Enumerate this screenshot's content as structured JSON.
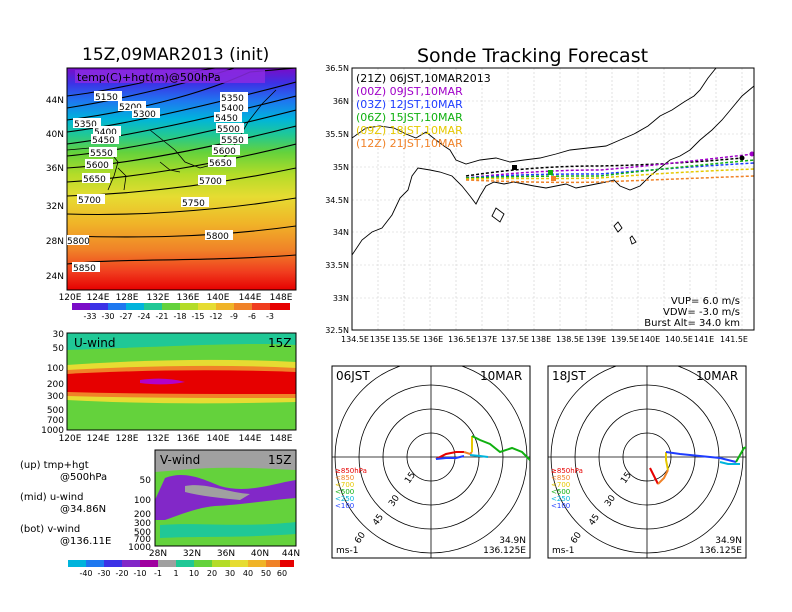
{
  "titles": {
    "left": "15Z,09MAR2013 (init)",
    "right": "Sonde Tracking Forecast"
  },
  "map500": {
    "label": "temp(C)+hgt(m)@500hPa",
    "lat_labels": [
      "44N",
      "40N",
      "36N",
      "32N",
      "28N",
      "24N"
    ],
    "lon_labels": [
      "120E",
      "124E",
      "128E",
      "132E",
      "136E",
      "140E",
      "144E",
      "148E"
    ],
    "contour_labels": [
      "5150",
      "5200",
      "5300",
      "5350",
      "5400",
      "5450",
      "5500",
      "5550",
      "5600",
      "5650",
      "5700",
      "5750",
      "5800",
      "5850"
    ],
    "colorbar_labels": [
      "-33",
      "-30",
      "-27",
      "-24",
      "-21",
      "-18",
      "-15",
      "-12",
      "-9",
      "-6",
      "-3"
    ]
  },
  "uwind": {
    "label": "U-wind",
    "time": "15Z",
    "y_labels": [
      "30",
      "50",
      "100",
      "200",
      "300",
      "500",
      "700",
      "1000"
    ],
    "x_labels": [
      "120E",
      "124E",
      "128E",
      "132E",
      "136E",
      "140E",
      "144E",
      "148E"
    ]
  },
  "vwind": {
    "label": "V-wind",
    "time": "15Z",
    "y_labels": [
      "50",
      "100",
      "200",
      "300",
      "500",
      "700",
      "1000"
    ],
    "x_labels": [
      "28N",
      "32N",
      "36N",
      "40N",
      "44N"
    ],
    "colorbar_labels": [
      "-40",
      "-30",
      "-20",
      "-10",
      "-1",
      "1",
      "10",
      "20",
      "30",
      "40",
      "50",
      "60"
    ]
  },
  "notes": {
    "up_a": "(up) tmp+hgt",
    "up_b": "@500hPa",
    "mid_a": "(mid) u-wind",
    "mid_b": "@34.86N",
    "bot_a": "(bot) v-wind",
    "bot_b": "@136.11E"
  },
  "track": {
    "y_labels": [
      "36.5N",
      "36N",
      "35.5N",
      "35N",
      "34.5N",
      "34N",
      "33.5N",
      "33N",
      "32.5N"
    ],
    "x_labels": [
      "134.5E",
      "135E",
      "135.5E",
      "136E",
      "136.5E",
      "137E",
      "137.5E",
      "138E",
      "138.5E",
      "139E",
      "139.5E",
      "140E",
      "140.5E",
      "141E",
      "141.5E"
    ],
    "legend": [
      {
        "text": "(21Z)  06JST,10MAR2013",
        "color": "#000000"
      },
      {
        "text": "(00Z)  09JST,10MAR",
        "color": "#a000c8"
      },
      {
        "text": "(03Z)  12JST,10MAR",
        "color": "#1e3cff"
      },
      {
        "text": "(06Z)  15JST,10MAR",
        "color": "#10b010"
      },
      {
        "text": "(09Z)  18JST,10MAR",
        "color": "#e6c800"
      },
      {
        "text": "(12Z)  21JST,10MAR",
        "color": "#f08228"
      }
    ],
    "params": {
      "vup": "VUP= 6.0 m/s",
      "vdw": "VDW= -3.0 m/s",
      "burst": "Burst Alt= 34.0 km"
    }
  },
  "polar_left": {
    "time": "06JST",
    "date": "10MAR",
    "ring_labels": [
      "15",
      "30",
      "45",
      "60"
    ],
    "unit": "ms-1",
    "lat": "34.9N",
    "lon": "136.125E",
    "levels": [
      {
        "text": "≥850hPa",
        "color": "#e60000"
      },
      {
        "text": "<850",
        "color": "#f08228"
      },
      {
        "text": "<700",
        "color": "#e6c800"
      },
      {
        "text": "<500",
        "color": "#10b010"
      },
      {
        "text": "<250",
        "color": "#00b4dc"
      },
      {
        "text": "<100",
        "color": "#1e3cff"
      }
    ]
  },
  "polar_right": {
    "time": "18JST",
    "date": "10MAR",
    "ring_labels": [
      "15",
      "30",
      "45",
      "60"
    ],
    "unit": "ms-1",
    "lat": "34.9N",
    "lon": "136.125E",
    "levels": [
      {
        "text": "≥850hPa",
        "color": "#e60000"
      },
      {
        "text": "<850",
        "color": "#f08228"
      },
      {
        "text": "<700",
        "color": "#e6c800"
      },
      {
        "text": "<500",
        "color": "#10b010"
      },
      {
        "text": "<250",
        "color": "#00b4dc"
      },
      {
        "text": "<100",
        "color": "#1e3cff"
      }
    ]
  }
}
